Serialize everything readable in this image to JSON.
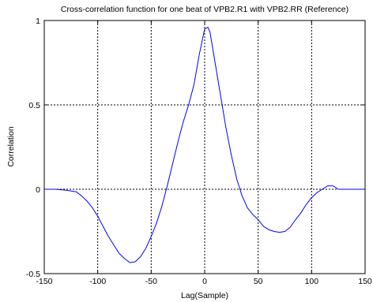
{
  "chart_data": {
    "type": "line",
    "title": "Cross-correlation function for one beat of VPB2.R1 with VPB2.RR (Reference)",
    "xlabel": "Lag(Sample)",
    "ylabel": "Correlation",
    "xlim": [
      -150,
      150
    ],
    "ylim": [
      -0.5,
      1
    ],
    "grid": true,
    "x_ticks": [
      -150,
      -100,
      -50,
      0,
      50,
      100,
      150
    ],
    "y_ticks": [
      -0.5,
      0,
      0.5,
      1
    ],
    "x_tick_labels": [
      "-150",
      "-100",
      "-50",
      "0",
      "50",
      "100",
      "150"
    ],
    "y_tick_labels": [
      "-0.5",
      "0",
      "0.5",
      "1"
    ],
    "series": [
      {
        "color": "#0000ff",
        "x": [
          -150,
          -140,
          -130,
          -120,
          -115,
          -110,
          -105,
          -100,
          -95,
          -90,
          -85,
          -80,
          -75,
          -70,
          -65,
          -60,
          -55,
          -50,
          -45,
          -40,
          -35,
          -30,
          -25,
          -20,
          -15,
          -10,
          -5,
          0,
          3,
          5,
          10,
          15,
          20,
          25,
          30,
          35,
          40,
          45,
          50,
          55,
          60,
          65,
          70,
          75,
          80,
          85,
          90,
          95,
          100,
          105,
          110,
          115,
          120,
          125,
          130,
          140,
          150
        ],
        "y": [
          0.0,
          0.0,
          -0.005,
          -0.015,
          -0.04,
          -0.07,
          -0.11,
          -0.16,
          -0.22,
          -0.28,
          -0.33,
          -0.38,
          -0.41,
          -0.435,
          -0.43,
          -0.4,
          -0.35,
          -0.28,
          -0.2,
          -0.1,
          0.02,
          0.15,
          0.28,
          0.4,
          0.5,
          0.62,
          0.8,
          0.95,
          0.96,
          0.93,
          0.74,
          0.55,
          0.36,
          0.2,
          0.06,
          -0.04,
          -0.11,
          -0.15,
          -0.18,
          -0.22,
          -0.24,
          -0.25,
          -0.255,
          -0.25,
          -0.225,
          -0.18,
          -0.14,
          -0.09,
          -0.05,
          -0.02,
          0.0,
          0.02,
          0.02,
          0.0,
          0.0,
          0.0,
          0.0
        ]
      }
    ]
  }
}
